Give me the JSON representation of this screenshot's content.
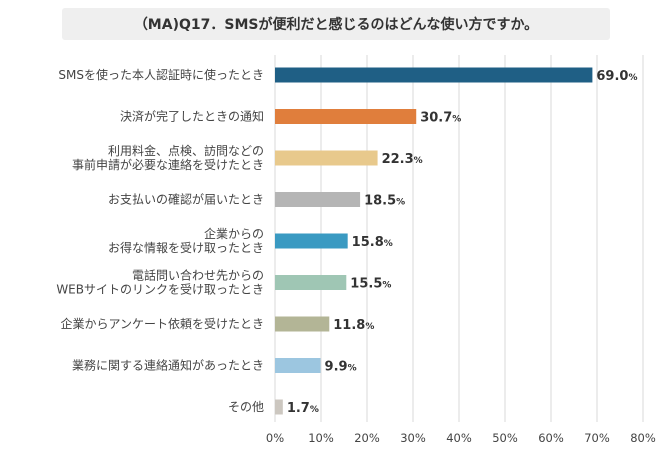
{
  "chart_data": {
    "type": "bar",
    "orientation": "horizontal",
    "title": "（MA)Q17．SMSが便利だと感じるのはどんな使い方ですか。",
    "categories": [
      [
        "SMSを使った本人認証時に使ったとき"
      ],
      [
        "決済が完了したときの通知"
      ],
      [
        "利用料金、点検、訪問などの",
        "事前申請が必要な連絡を受けたとき"
      ],
      [
        "お支払いの確認が届いたとき"
      ],
      [
        "企業からの",
        "お得な情報を受け取ったとき"
      ],
      [
        "電話問い合わせ先からの",
        "WEBサイトのリンクを受け取ったとき"
      ],
      [
        "企業からアンケート依頼を受けたとき"
      ],
      [
        "業務に関する連絡通知があったとき"
      ],
      [
        "その他"
      ]
    ],
    "values": [
      69.0,
      30.7,
      22.3,
      18.5,
      15.8,
      15.5,
      11.8,
      9.9,
      1.7
    ],
    "value_labels": [
      "69.0",
      "30.7",
      "22.3",
      "18.5",
      "15.8",
      "15.5",
      "11.8",
      "9.9",
      "1.7"
    ],
    "value_suffix": "%",
    "colors": [
      "#1f5f85",
      "#e07e3c",
      "#e8c98c",
      "#b5b5b5",
      "#3a9ac2",
      "#9fc6b4",
      "#b3b596",
      "#9cc6e0",
      "#ccc7c0"
    ],
    "xlim": [
      0,
      80
    ],
    "xticks": [
      0,
      10,
      20,
      30,
      40,
      50,
      60,
      70,
      80
    ],
    "xtick_labels": [
      "0%",
      "10%",
      "20%",
      "30%",
      "40%",
      "50%",
      "60%",
      "70%",
      "80%"
    ],
    "grid": "vertical",
    "legend": "none"
  }
}
